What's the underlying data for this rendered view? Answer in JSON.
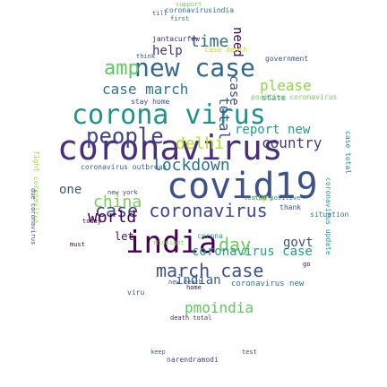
{
  "words": [
    {
      "text": "coronavirus",
      "color": "#472d7b"
    },
    {
      "text": "covid19",
      "color": "#3b528b"
    },
    {
      "text": "corona virus",
      "color": "#21918c"
    },
    {
      "text": "india",
      "color": "#440154"
    },
    {
      "text": "new case",
      "color": "#31688e"
    },
    {
      "text": "case coronavirus",
      "color": "#3e4a89"
    },
    {
      "text": "lockdown",
      "color": "#2c728e"
    },
    {
      "text": "people",
      "color": "#414487"
    },
    {
      "text": "amp",
      "color": "#5ec962"
    },
    {
      "text": "march case",
      "color": "#3b528b"
    },
    {
      "text": "world",
      "color": "#440154"
    },
    {
      "text": "china",
      "color": "#7ad151"
    },
    {
      "text": "case march",
      "color": "#2a788e"
    },
    {
      "text": "time",
      "color": "#31688e"
    },
    {
      "text": "report new",
      "color": "#20a386"
    },
    {
      "text": "please",
      "color": "#8fd744"
    },
    {
      "text": "day",
      "color": "#6ccd5a"
    },
    {
      "text": "coronavirus case",
      "color": "#1fa187"
    },
    {
      "text": "indian",
      "color": "#355f8d"
    },
    {
      "text": "pmoindia",
      "color": "#5ec962"
    },
    {
      "text": "delhi",
      "color": "#b5de2b"
    },
    {
      "text": "country",
      "color": "#443983"
    },
    {
      "text": "one",
      "color": "#39568c"
    },
    {
      "text": "help",
      "color": "#46327e"
    },
    {
      "text": "total",
      "color": "#3b528b"
    },
    {
      "text": "case",
      "color": "#3e4989"
    },
    {
      "text": "need",
      "color": "#440154"
    },
    {
      "text": "govt",
      "color": "#3b528b"
    },
    {
      "text": "let",
      "color": "#471063"
    },
    {
      "text": "coronavirus new",
      "color": "#2a788e"
    },
    {
      "text": "state",
      "color": "#1f9e89"
    },
    {
      "text": "positive coronavirus",
      "color": "#6ece58"
    },
    {
      "text": "coronavirus outbreak",
      "color": "#31688e"
    },
    {
      "text": "death total",
      "color": "#481f70"
    },
    {
      "text": "narendramodi",
      "color": "#3e4989"
    },
    {
      "text": "case total",
      "color": "#26828e"
    },
    {
      "text": "fight coronavirus",
      "color": "#9fda3a"
    },
    {
      "text": "coronavirus update",
      "color": "#1f9e89"
    },
    {
      "text": "due coronavirus",
      "color": "#3b528b"
    },
    {
      "text": "coronavirusindia",
      "color": "#2c728e"
    },
    {
      "text": "jantacurfew",
      "color": "#472c7a"
    },
    {
      "text": "stay home",
      "color": "#3e4989"
    },
    {
      "text": "support",
      "color": "#73d056"
    },
    {
      "text": "government",
      "color": "#3b528b"
    },
    {
      "text": "case death",
      "color": "#c2df23"
    },
    {
      "text": "thank",
      "color": "#3b528b"
    },
    {
      "text": "today",
      "color": "#440154"
    },
    {
      "text": "situation",
      "color": "#2a788e"
    },
    {
      "text": "new death",
      "color": "#38588c"
    },
    {
      "text": "midnight",
      "color": "#8fd744"
    },
    {
      "text": "viru",
      "color": "#3b528b"
    },
    {
      "text": "home",
      "color": "#440154"
    },
    {
      "text": "tested positive",
      "color": "#2a788e"
    },
    {
      "text": "test",
      "color": "#3e4989"
    },
    {
      "text": "go",
      "color": "#440154"
    },
    {
      "text": "keep",
      "color": "#31688e"
    },
    {
      "text": "first",
      "color": "#2a788e"
    },
    {
      "text": "think",
      "color": "#3b528b"
    },
    {
      "text": "must",
      "color": "#440154"
    },
    {
      "text": "new york",
      "color": "#3e4989"
    },
    {
      "text": "fight",
      "color": "#a0da39"
    },
    {
      "text": "till",
      "color": "#3b528b"
    },
    {
      "text": "corona",
      "color": "#1f9e89"
    }
  ]
}
